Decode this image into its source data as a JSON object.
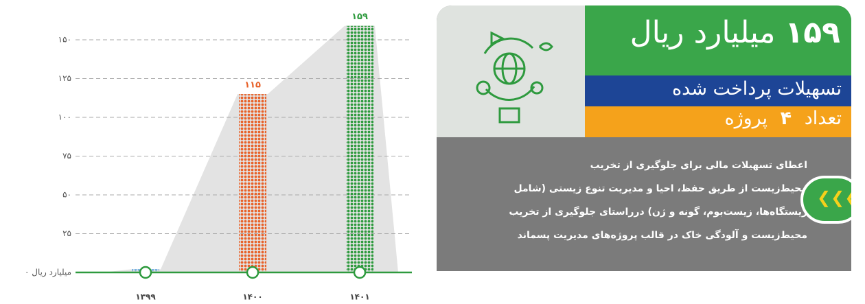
{
  "chart_data": {
    "type": "bar",
    "categories": [
      "۱۳۹۹",
      "۱۴۰۰",
      "۱۴۰۱"
    ],
    "values": [
      2,
      115,
      159
    ],
    "value_labels": [
      null,
      "۱۱۵",
      "۱۵۹"
    ],
    "colors": [
      "#2a86d1",
      "#e8622a",
      "#2e9a3e"
    ],
    "ylim": [
      0,
      150
    ],
    "yticks": [
      {
        "value": 0,
        "label": "۰ میلیارد ریال"
      },
      {
        "value": 25,
        "label": "۲۵"
      },
      {
        "value": 50,
        "label": "۵۰"
      },
      {
        "value": 75,
        "label": "۷۵"
      },
      {
        "value": 100,
        "label": "۱۰۰"
      },
      {
        "value": 125,
        "label": "۱۲۵"
      },
      {
        "value": 150,
        "label": "۱۵۰"
      }
    ],
    "grid": true
  },
  "panel": {
    "title_number": "۱۵۹",
    "title_unit": "میلیارد ریال",
    "subtitle": "تسهیلات پرداخت شده",
    "count_label": "تعداد",
    "count_number": "۴",
    "count_unit": "پروژه",
    "body": [
      "اعطای تسهیلات مالی برای جلوگیری از تخریب",
      "محیط‌زیست از طریق حفظ، احیا و مدیریت تنوع زیستی (شامل",
      "زیستگاه‌ها، زیست‌بوم، گونه و ژن) درراستای جلوگیری از تخریب",
      "محیط‌زیست و آلودگی خاک در قالب پروژه‌های مدیریت پسماند"
    ]
  }
}
